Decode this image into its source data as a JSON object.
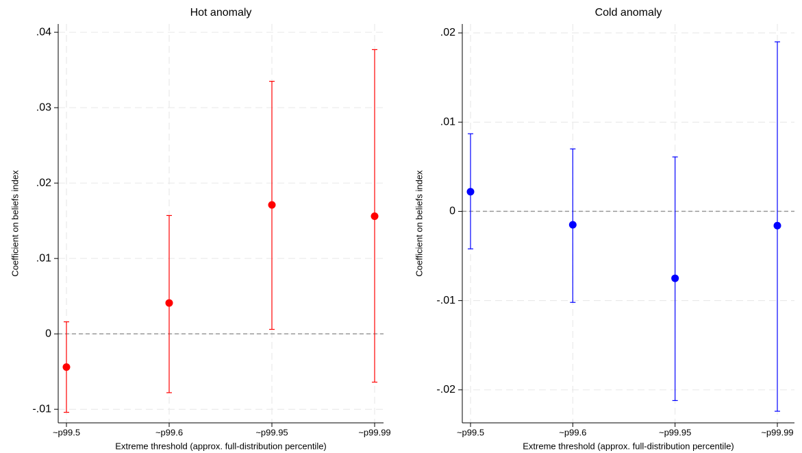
{
  "chart_data": [
    {
      "type": "errorbar",
      "title": "Hot anomaly",
      "xlabel": "Extreme threshold (approx. full-distribution percentile)",
      "ylabel": "Coefficient on beliefs index",
      "categories": [
        "~p99.5",
        "~p99.6",
        "~p99.95",
        "~p99.99"
      ],
      "values": [
        -0.0044,
        0.0041,
        0.0171,
        0.0156
      ],
      "lower": [
        -0.0104,
        -0.0078,
        0.0006,
        -0.0064
      ],
      "upper": [
        0.0016,
        0.0157,
        0.0335,
        0.0377
      ],
      "color": "#ff0000",
      "hline": 0,
      "ylim": [
        -0.0118,
        0.0411
      ],
      "yticks": [
        {
          "value": -0.01,
          "label": "-.01"
        },
        0,
        {
          "value": 0.01,
          "label": ".01"
        },
        {
          "value": 0.02,
          "label": ".02"
        },
        {
          "value": 0.03,
          "label": ".03"
        },
        {
          "value": 0.04,
          "label": ".04"
        }
      ],
      "grid": true
    },
    {
      "type": "errorbar",
      "title": "Cold anomaly",
      "xlabel": "Extreme threshold (approx. full-distribution percentile)",
      "ylabel": "Coefficient on beliefs index",
      "categories": [
        "~p99.5",
        "~p99.6",
        "~p99.95",
        "~p99.99"
      ],
      "values": [
        0.0022,
        -0.0015,
        -0.0075,
        -0.0016
      ],
      "lower": [
        -0.0042,
        -0.0102,
        -0.0212,
        -0.0224
      ],
      "upper": [
        0.0087,
        0.007,
        0.0061,
        0.019
      ],
      "color": "#0000ff",
      "hline": 0,
      "ylim": [
        -0.0237,
        0.021
      ],
      "yticks": [
        {
          "value": -0.02,
          "label": "-.02"
        },
        {
          "value": -0.01,
          "label": "-.01"
        },
        0,
        {
          "value": 0.01,
          "label": ".01"
        },
        {
          "value": 0.02,
          "label": ".02"
        }
      ],
      "grid": true
    }
  ]
}
